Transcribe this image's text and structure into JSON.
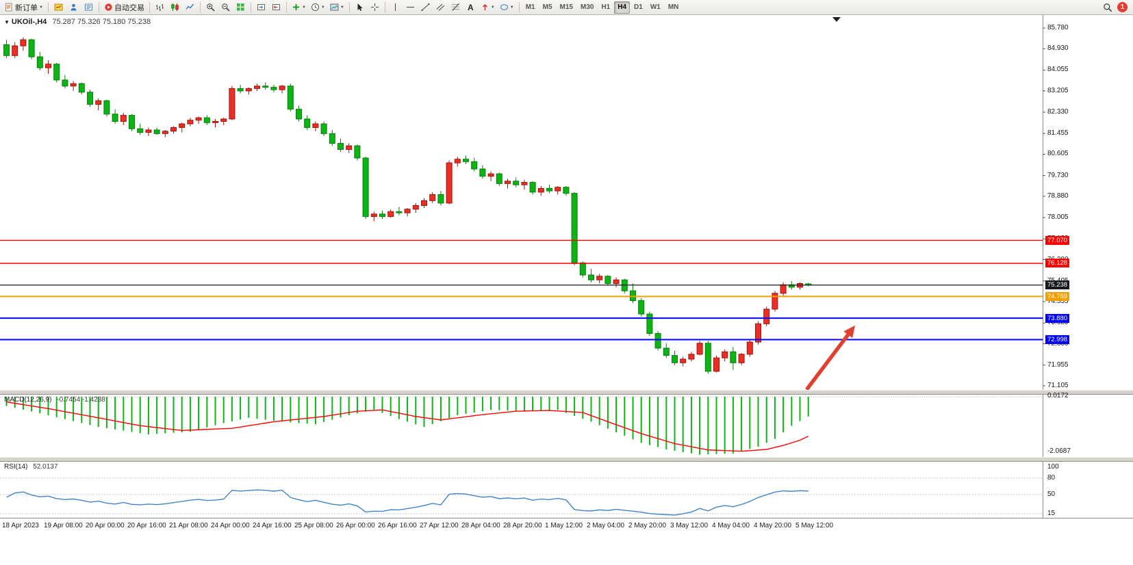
{
  "window": {
    "notification_count": "1"
  },
  "toolbar": {
    "new_order_label": "新订单",
    "autotrading_label": "自动交易",
    "text_tool_label": "A",
    "timeframes": [
      "M1",
      "M5",
      "M15",
      "M30",
      "H1",
      "H4",
      "D1",
      "W1",
      "MN"
    ],
    "active_timeframe": "H4"
  },
  "chart": {
    "symbol_title": "UKOil-,H4",
    "ohlc_display": "75.287 75.326 75.180 75.238"
  },
  "colors": {
    "bull": "#ec2f25",
    "bull_border": "#9e120b",
    "bear": "#0cb514",
    "bear_border": "#067d0c",
    "macd_hist": "#0cb514",
    "macd_signal": "#ff0000",
    "rsi_line": "#3d85c8",
    "price_line": "#15191e",
    "level_red": "#ff0000",
    "level_blue": "#0000ff",
    "level_orange": "#f0a000",
    "arrow": "#e0402f"
  },
  "chart_data": {
    "type": "candlestick",
    "symbol": "UKOil",
    "period": "H4",
    "last_ohlc": {
      "open": 75.287,
      "high": 75.326,
      "low": 75.18,
      "close": 75.238
    },
    "candles": [
      [
        85.1,
        85.3,
        84.55,
        84.65
      ],
      [
        84.65,
        85.2,
        84.55,
        85.05
      ],
      [
        85.05,
        85.4,
        84.85,
        85.3
      ],
      [
        85.3,
        85.35,
        84.5,
        84.6
      ],
      [
        84.6,
        84.8,
        84.05,
        84.15
      ],
      [
        84.15,
        84.45,
        83.9,
        84.3
      ],
      [
        84.3,
        84.35,
        83.55,
        83.65
      ],
      [
        83.65,
        83.85,
        83.3,
        83.4
      ],
      [
        83.4,
        83.6,
        83.2,
        83.5
      ],
      [
        83.5,
        83.55,
        83.05,
        83.15
      ],
      [
        83.15,
        83.25,
        82.55,
        82.65
      ],
      [
        82.65,
        82.9,
        82.4,
        82.8
      ],
      [
        82.8,
        82.85,
        82.15,
        82.25
      ],
      [
        82.25,
        82.45,
        81.85,
        81.95
      ],
      [
        81.95,
        82.3,
        81.8,
        82.2
      ],
      [
        82.2,
        82.25,
        81.55,
        81.65
      ],
      [
        81.65,
        81.85,
        81.4,
        81.5
      ],
      [
        81.5,
        81.7,
        81.35,
        81.6
      ],
      [
        81.6,
        81.7,
        81.4,
        81.45
      ],
      [
        81.45,
        81.6,
        81.3,
        81.55
      ],
      [
        81.55,
        81.75,
        81.45,
        81.7
      ],
      [
        81.7,
        81.9,
        81.5,
        81.85
      ],
      [
        81.85,
        82.1,
        81.75,
        82.0
      ],
      [
        82.0,
        82.15,
        81.85,
        82.1
      ],
      [
        82.1,
        82.2,
        81.8,
        81.9
      ],
      [
        81.9,
        82.05,
        81.7,
        81.95
      ],
      [
        81.95,
        82.1,
        81.8,
        82.05
      ],
      [
        82.05,
        83.4,
        82.0,
        83.3
      ],
      [
        83.3,
        83.45,
        83.1,
        83.2
      ],
      [
        83.2,
        83.35,
        83.05,
        83.3
      ],
      [
        83.3,
        83.5,
        83.2,
        83.4
      ],
      [
        83.4,
        83.55,
        83.25,
        83.35
      ],
      [
        83.35,
        83.45,
        83.15,
        83.25
      ],
      [
        83.25,
        83.45,
        83.1,
        83.4
      ],
      [
        83.4,
        83.5,
        82.35,
        82.45
      ],
      [
        82.45,
        82.6,
        81.95,
        82.05
      ],
      [
        82.05,
        82.2,
        81.6,
        81.7
      ],
      [
        81.7,
        81.95,
        81.55,
        81.85
      ],
      [
        81.85,
        81.95,
        81.35,
        81.45
      ],
      [
        81.45,
        81.6,
        80.95,
        81.05
      ],
      [
        81.05,
        81.25,
        80.7,
        80.8
      ],
      [
        80.8,
        81.05,
        80.65,
        80.95
      ],
      [
        80.95,
        81.0,
        80.35,
        80.45
      ],
      [
        80.45,
        80.5,
        77.95,
        78.05
      ],
      [
        78.05,
        78.25,
        77.85,
        78.15
      ],
      [
        78.15,
        78.3,
        77.95,
        78.05
      ],
      [
        78.05,
        78.35,
        78.0,
        78.25
      ],
      [
        78.25,
        78.45,
        78.1,
        78.2
      ],
      [
        78.2,
        78.4,
        78.05,
        78.35
      ],
      [
        78.35,
        78.6,
        78.2,
        78.5
      ],
      [
        78.5,
        78.8,
        78.4,
        78.7
      ],
      [
        78.7,
        79.05,
        78.6,
        78.95
      ],
      [
        78.95,
        79.1,
        78.5,
        78.6
      ],
      [
        78.6,
        80.35,
        78.55,
        80.25
      ],
      [
        80.25,
        80.5,
        80.1,
        80.4
      ],
      [
        80.4,
        80.55,
        80.2,
        80.3
      ],
      [
        80.3,
        80.45,
        79.9,
        80.0
      ],
      [
        80.0,
        80.15,
        79.6,
        79.7
      ],
      [
        79.7,
        79.9,
        79.5,
        79.8
      ],
      [
        79.8,
        79.85,
        79.3,
        79.4
      ],
      [
        79.4,
        79.6,
        79.2,
        79.5
      ],
      [
        79.5,
        79.65,
        79.25,
        79.35
      ],
      [
        79.35,
        79.55,
        79.15,
        79.45
      ],
      [
        79.45,
        79.5,
        78.95,
        79.05
      ],
      [
        79.05,
        79.3,
        78.9,
        79.2
      ],
      [
        79.2,
        79.35,
        79.0,
        79.1
      ],
      [
        79.1,
        79.3,
        78.95,
        79.25
      ],
      [
        79.25,
        79.3,
        78.9,
        79.0
      ],
      [
        79.0,
        79.05,
        76.05,
        76.15
      ],
      [
        76.15,
        76.2,
        75.55,
        75.65
      ],
      [
        75.65,
        75.9,
        75.35,
        75.45
      ],
      [
        75.45,
        75.7,
        75.3,
        75.6
      ],
      [
        75.6,
        75.65,
        75.2,
        75.3
      ],
      [
        75.3,
        75.55,
        75.15,
        75.45
      ],
      [
        75.45,
        75.5,
        74.9,
        75.0
      ],
      [
        75.0,
        75.3,
        74.5,
        74.6
      ],
      [
        74.6,
        74.7,
        73.95,
        74.05
      ],
      [
        74.05,
        74.15,
        73.15,
        73.25
      ],
      [
        73.25,
        73.35,
        72.55,
        72.65
      ],
      [
        72.65,
        72.85,
        72.25,
        72.35
      ],
      [
        72.35,
        72.55,
        71.95,
        72.05
      ],
      [
        72.05,
        72.3,
        71.9,
        72.2
      ],
      [
        72.2,
        72.5,
        72.1,
        72.4
      ],
      [
        72.4,
        72.95,
        72.35,
        72.85
      ],
      [
        72.85,
        72.95,
        71.6,
        71.7
      ],
      [
        71.7,
        72.35,
        71.65,
        72.25
      ],
      [
        72.25,
        72.6,
        72.1,
        72.5
      ],
      [
        72.5,
        72.7,
        71.75,
        72.05
      ],
      [
        72.05,
        72.45,
        71.95,
        72.4
      ],
      [
        72.4,
        73.0,
        72.3,
        72.9
      ],
      [
        72.9,
        73.75,
        72.8,
        73.65
      ],
      [
        73.65,
        74.35,
        73.55,
        74.25
      ],
      [
        74.25,
        75.0,
        74.15,
        74.9
      ],
      [
        74.9,
        75.35,
        74.8,
        75.25
      ],
      [
        75.25,
        75.4,
        75.05,
        75.15
      ],
      [
        75.15,
        75.35,
        75.05,
        75.3
      ],
      [
        75.287,
        75.326,
        75.18,
        75.238
      ]
    ],
    "x_labels": [
      "18 Apr 2023",
      "19 Apr 08:00",
      "20 Apr 00:00",
      "20 Apr 16:00",
      "21 Apr 08:00",
      "24 Apr 00:00",
      "24 Apr 16:00",
      "25 Apr 08:00",
      "26 Apr 00:00",
      "26 Apr 16:00",
      "27 Apr 12:00",
      "28 Apr 04:00",
      "28 Apr 20:00",
      "1 May 12:00",
      "2 May 04:00",
      "2 May 20:00",
      "3 May 12:00",
      "4 May 04:00",
      "4 May 20:00",
      "5 May 12:00"
    ],
    "y_axis_labels": [
      "85.780",
      "84.930",
      "84.055",
      "83.205",
      "82.330",
      "81.455",
      "80.605",
      "79.730",
      "78.880",
      "78.005",
      "77.130",
      "76.280",
      "75.405",
      "74.555",
      "73.680",
      "72.830",
      "71.955",
      "71.105"
    ],
    "price_badges": [
      {
        "text": "77.070",
        "color": "#ff0000"
      },
      {
        "text": "76.128",
        "color": "#ff0000"
      },
      {
        "text": "75.238",
        "color": "#15191e"
      },
      {
        "text": "74.769",
        "color": "#f0a000"
      },
      {
        "text": "73.880",
        "color": "#0000ff"
      },
      {
        "text": "72.998",
        "color": "#0000ff"
      }
    ],
    "horizontal_lines": [
      {
        "price": 77.07,
        "color": "#ff0000",
        "width": 1.4
      },
      {
        "price": 76.128,
        "color": "#ff0000",
        "width": 1.4
      },
      {
        "price": 75.238,
        "color": "#15191e",
        "width": 1.2
      },
      {
        "price": 74.769,
        "color": "#f0a000",
        "width": 2
      },
      {
        "price": 73.88,
        "color": "#0000ff",
        "width": 2
      },
      {
        "price": 72.998,
        "color": "#0000ff",
        "width": 2
      }
    ],
    "annotation_arrow": {
      "from_index": 95.8,
      "from_price": 70.95,
      "to_index": 101.6,
      "to_price": 73.58
    },
    "macd": {
      "label": "MACD(12,26,9)",
      "values_display": "-0.7454 -1.4238",
      "main_value": -0.7454,
      "signal_value": -1.4238,
      "axis_top": "0.0172",
      "axis_bottom": "-2.0687",
      "histogram_points": [
        [
          0,
          -0.35
        ],
        [
          5,
          -0.7
        ],
        [
          11,
          -1.15
        ],
        [
          17,
          -1.43
        ],
        [
          22,
          -1.33
        ],
        [
          26,
          -1.0
        ],
        [
          29,
          -0.8
        ],
        [
          33,
          -0.95
        ],
        [
          37,
          -1.05
        ],
        [
          41,
          -0.7
        ],
        [
          44,
          -0.5
        ],
        [
          47,
          -0.85
        ],
        [
          50,
          -1.15
        ],
        [
          54,
          -0.7
        ],
        [
          58,
          -0.5
        ],
        [
          62,
          -0.55
        ],
        [
          66,
          -0.5
        ],
        [
          70,
          -0.95
        ],
        [
          73,
          -1.35
        ],
        [
          76,
          -1.75
        ],
        [
          79,
          -2.0
        ],
        [
          83,
          -2.2
        ],
        [
          87,
          -2.15
        ],
        [
          90,
          -1.9
        ],
        [
          92,
          -1.6
        ],
        [
          94,
          -1.1
        ],
        [
          96,
          -0.75
        ]
      ],
      "signal_points": [
        [
          0,
          -0.2
        ],
        [
          5,
          -0.45
        ],
        [
          11,
          -0.8
        ],
        [
          16,
          -1.1
        ],
        [
          21,
          -1.28
        ],
        [
          27,
          -1.2
        ],
        [
          32,
          -0.95
        ],
        [
          38,
          -0.75
        ],
        [
          42,
          -0.55
        ],
        [
          45,
          -0.5
        ],
        [
          49,
          -0.75
        ],
        [
          52,
          -0.88
        ],
        [
          57,
          -0.68
        ],
        [
          61,
          -0.55
        ],
        [
          65,
          -0.52
        ],
        [
          69,
          -0.6
        ],
        [
          72,
          -0.95
        ],
        [
          76,
          -1.4
        ],
        [
          80,
          -1.78
        ],
        [
          84,
          -2.02
        ],
        [
          88,
          -2.07
        ],
        [
          91,
          -2.0
        ],
        [
          93,
          -1.85
        ],
        [
          95,
          -1.65
        ],
        [
          96,
          -1.5
        ]
      ]
    },
    "rsi": {
      "label": "RSI(14)",
      "value_display": "52.0137",
      "value": 52.0137,
      "period": 14,
      "axis_labels": [
        "100",
        "80",
        "50",
        "15"
      ],
      "levels": [
        80,
        50,
        15
      ]
    }
  }
}
